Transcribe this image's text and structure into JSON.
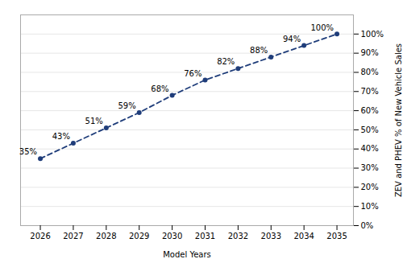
{
  "chart_data": {
    "type": "line",
    "x": [
      2026,
      2027,
      2028,
      2029,
      2030,
      2031,
      2032,
      2033,
      2034,
      2035
    ],
    "values": [
      35,
      43,
      51,
      59,
      68,
      76,
      82,
      88,
      94,
      100
    ],
    "value_labels": [
      "35%",
      "43%",
      "51%",
      "59%",
      "68%",
      "76%",
      "82%",
      "88%",
      "94%",
      "100%"
    ],
    "data_labels": true,
    "xlabel": "Model Years",
    "ylabel": "ZEV and PHEV % of New Vehicle Sales",
    "color": "#1f3d7a",
    "line_style": "dashed",
    "marker": "circle",
    "xlim": [
      2025.4,
      2035.5
    ],
    "xticks": [
      2026,
      2027,
      2028,
      2029,
      2030,
      2031,
      2032,
      2033,
      2034,
      2035
    ],
    "ylim": [
      0,
      110
    ],
    "yticks": [
      {
        "value": 0,
        "label": "0%"
      },
      {
        "value": 10,
        "label": "10%"
      },
      {
        "value": 20,
        "label": "20%"
      },
      {
        "value": 30,
        "label": "30%"
      },
      {
        "value": 40,
        "label": "40%"
      },
      {
        "value": 50,
        "label": "50%"
      },
      {
        "value": 60,
        "label": "60%"
      },
      {
        "value": 70,
        "label": "70%"
      },
      {
        "value": 80,
        "label": "80%"
      },
      {
        "value": 90,
        "label": "90%"
      },
      {
        "value": 100,
        "label": "100%"
      }
    ],
    "grid": true
  }
}
